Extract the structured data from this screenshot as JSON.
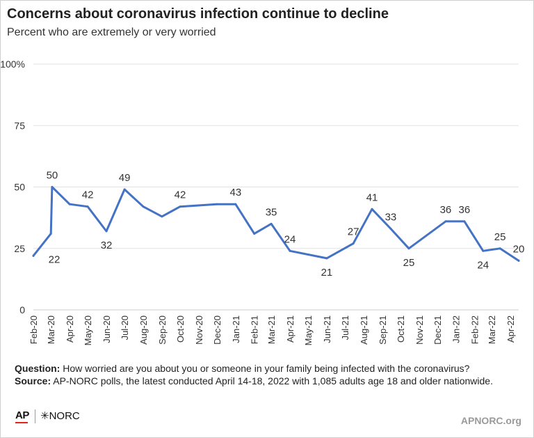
{
  "header": {
    "title": "Concerns about coronavirus infection continue to decline",
    "subtitle": "Percent who are extremely or very worried"
  },
  "chart_data": {
    "type": "line",
    "ylim": [
      0,
      100
    ],
    "y_ticks": [
      "0",
      "25",
      "50",
      "75",
      "100%"
    ],
    "y_tick_values": [
      0,
      25,
      50,
      75,
      100
    ],
    "x_labels": [
      "Feb-20",
      "Mar-20",
      "Apr-20",
      "May-20",
      "Jun-20",
      "Jul-20",
      "Aug-20",
      "Sep-20",
      "Oct-20",
      "Nov-20",
      "Dec-20",
      "Jan-21",
      "Feb-21",
      "Mar-21",
      "Apr-21",
      "May-21",
      "Jun-21",
      "Jul-21",
      "Aug-21",
      "Sep-21",
      "Oct-21",
      "Nov-21",
      "Dec-21",
      "Jan-22",
      "Feb-22",
      "Mar-22",
      "Apr-22"
    ],
    "grid": true,
    "line_color": "#4472c4",
    "series": [
      {
        "points": [
          {
            "x": "2020-02-01",
            "y": 22
          },
          {
            "x": "2020-03-01",
            "y": 31
          },
          {
            "x": "2020-03-03",
            "y": 50
          },
          {
            "x": "2020-04-01",
            "y": 43
          },
          {
            "x": "2020-05-01",
            "y": 42
          },
          {
            "x": "2020-06-01",
            "y": 32
          },
          {
            "x": "2020-07-01",
            "y": 49
          },
          {
            "x": "2020-08-01",
            "y": 42
          },
          {
            "x": "2020-09-01",
            "y": 38
          },
          {
            "x": "2020-10-01",
            "y": 42
          },
          {
            "x": "2020-12-01",
            "y": 43
          },
          {
            "x": "2021-01-01",
            "y": 43
          },
          {
            "x": "2021-02-01",
            "y": 31
          },
          {
            "x": "2021-03-01",
            "y": 35
          },
          {
            "x": "2021-04-01",
            "y": 24
          },
          {
            "x": "2021-06-01",
            "y": 21
          },
          {
            "x": "2021-07-15",
            "y": 27
          },
          {
            "x": "2021-08-15",
            "y": 41
          },
          {
            "x": "2021-09-15",
            "y": 33
          },
          {
            "x": "2021-10-15",
            "y": 25
          },
          {
            "x": "2021-12-15",
            "y": 36
          },
          {
            "x": "2022-01-15",
            "y": 36
          },
          {
            "x": "2022-02-15",
            "y": 24
          },
          {
            "x": "2022-03-15",
            "y": 25
          },
          {
            "x": "2022-04-15",
            "y": 20
          }
        ]
      }
    ],
    "data_labels": [
      {
        "x": "2020-02-01",
        "y": 22,
        "text": "22"
      },
      {
        "x": "2020-03-03",
        "y": 50,
        "text": "50"
      },
      {
        "x": "2020-05-01",
        "y": 42,
        "text": "42"
      },
      {
        "x": "2020-06-01",
        "y": 32,
        "text": "32"
      },
      {
        "x": "2020-07-01",
        "y": 49,
        "text": "49"
      },
      {
        "x": "2020-10-01",
        "y": 42,
        "text": "42"
      },
      {
        "x": "2021-01-01",
        "y": 43,
        "text": "43"
      },
      {
        "x": "2021-03-01",
        "y": 35,
        "text": "35"
      },
      {
        "x": "2021-04-01",
        "y": 24,
        "text": "24"
      },
      {
        "x": "2021-06-01",
        "y": 21,
        "text": "21"
      },
      {
        "x": "2021-07-15",
        "y": 27,
        "text": "27"
      },
      {
        "x": "2021-08-15",
        "y": 41,
        "text": "41"
      },
      {
        "x": "2021-09-15",
        "y": 33,
        "text": "33"
      },
      {
        "x": "2021-10-15",
        "y": 25,
        "text": "25"
      },
      {
        "x": "2021-12-15",
        "y": 36,
        "text": "36"
      },
      {
        "x": "2022-01-15",
        "y": 36,
        "text": "36"
      },
      {
        "x": "2022-02-15",
        "y": 24,
        "text": "24"
      },
      {
        "x": "2022-03-15",
        "y": 25,
        "text": "25"
      },
      {
        "x": "2022-04-15",
        "y": 20,
        "text": "20"
      }
    ]
  },
  "footnote": {
    "question_label": "Question:",
    "question_text": " How worried are you about you or someone in your family being infected with the coronavirus?",
    "source_label": "Source:",
    "source_text": "  AP-NORC polls, the latest conducted April 14-18, 2022 with 1,085 adults age 18 and older nationwide."
  },
  "branding": {
    "ap_logo": "AP",
    "norc_logo": "✳NORC",
    "website": "APNORC.org"
  }
}
